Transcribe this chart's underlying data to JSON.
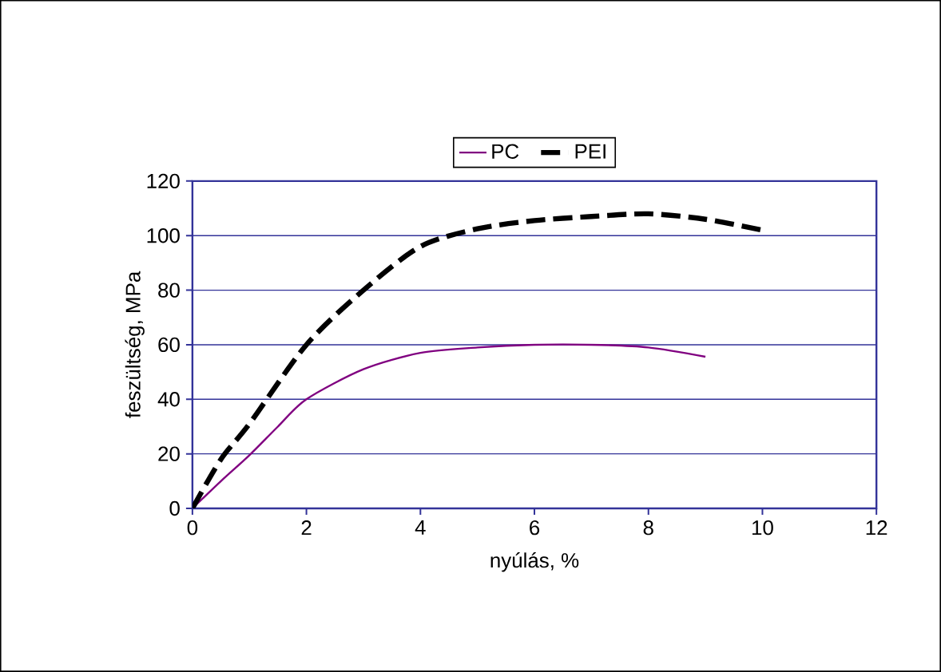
{
  "chart_data": {
    "type": "line",
    "xlabel": "nyúlás, %",
    "ylabel": "feszültség, MPa",
    "xlim": [
      0,
      12
    ],
    "ylim": [
      0,
      120
    ],
    "xticks": [
      0,
      2,
      4,
      6,
      8,
      10,
      12
    ],
    "yticks": [
      0,
      20,
      40,
      60,
      80,
      100,
      120
    ],
    "grid": "y",
    "legend": "top",
    "series": [
      {
        "name": "PC",
        "color": "#800080",
        "line_style": "solid",
        "x": [
          0,
          0.5,
          1,
          1.5,
          2,
          3,
          4,
          5,
          6,
          7,
          8,
          9
        ],
        "values": [
          0,
          10,
          19.5,
          30,
          40,
          51,
          57,
          59,
          60,
          60,
          59,
          55.6
        ]
      },
      {
        "name": "PEI",
        "color": "#000000",
        "line_style": "dashed",
        "x": [
          0,
          0.5,
          1,
          2,
          3,
          4,
          5,
          6,
          7,
          8,
          9,
          10
        ],
        "values": [
          0,
          18,
          31,
          60,
          80,
          96,
          102.5,
          105.5,
          107,
          108,
          106,
          102
        ]
      }
    ]
  }
}
